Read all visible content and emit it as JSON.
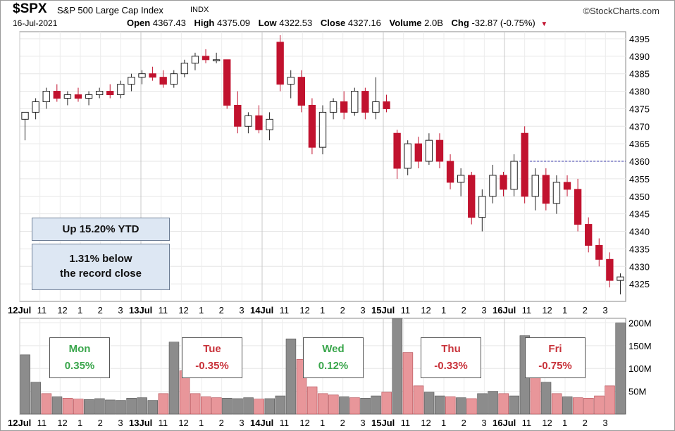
{
  "header": {
    "symbol": "$SPX",
    "name": "S&P 500 Large Cap Index",
    "exchange": "INDX",
    "brand": "©StockCharts.com",
    "date": "16-Jul-2021",
    "open_label": "Open",
    "open": "4367.43",
    "high_label": "High",
    "high": "4375.09",
    "low_label": "Low",
    "low": "4322.53",
    "close_label": "Close",
    "close": "4327.16",
    "volume_label": "Volume",
    "volume": "2.0B",
    "chg_label": "Chg",
    "chg": "-32.87 (-0.75%)"
  },
  "annotations": {
    "ytd": "Up 15.20% YTD",
    "record_line1": "1.31% below",
    "record_line2": "the record close"
  },
  "days": [
    {
      "name": "Mon",
      "pct": "0.35%",
      "dir": "up"
    },
    {
      "name": "Tue",
      "pct": "-0.35%",
      "dir": "down"
    },
    {
      "name": "Wed",
      "pct": "0.12%",
      "dir": "up"
    },
    {
      "name": "Thu",
      "pct": "-0.33%",
      "dir": "down"
    },
    {
      "name": "Fri",
      "pct": "-0.75%",
      "dir": "down"
    }
  ],
  "colors": {
    "up": "#3aa64c",
    "down": "#c1122e",
    "up_candle": "#ffffff",
    "volume_up": "#8c8c8c",
    "volume_down": "#e8969a",
    "reference": "#3a3aa8"
  },
  "chart_data": [
    {
      "type": "candlestick",
      "title": "$SPX S&P 500 Large Cap Index INDX",
      "ylim": [
        4320,
        4397
      ],
      "yticks": [
        4325,
        4330,
        4335,
        4340,
        4345,
        4350,
        4355,
        4360,
        4365,
        4370,
        4375,
        4380,
        4385,
        4390,
        4395
      ],
      "x_tick_labels": [
        "12Jul",
        "11",
        "12",
        "1",
        "2",
        "3",
        "13Jul",
        "11",
        "12",
        "1",
        "2",
        "3",
        "14Jul",
        "11",
        "12",
        "1",
        "2",
        "3",
        "15Jul",
        "11",
        "12",
        "1",
        "2",
        "3",
        "16Jul",
        "11",
        "12",
        "1",
        "2",
        "3"
      ],
      "reference_line": 4360,
      "grid": true,
      "candles": [
        [
          4372,
          4374,
          4366,
          4374
        ],
        [
          4374,
          4378,
          4372,
          4377
        ],
        [
          4377,
          4381,
          4375,
          4380
        ],
        [
          4380,
          4382,
          4377,
          4378
        ],
        [
          4378,
          4380,
          4376,
          4379
        ],
        [
          4379,
          4381,
          4377,
          4378
        ],
        [
          4378,
          4380,
          4376,
          4379
        ],
        [
          4379,
          4381,
          4378,
          4380
        ],
        [
          4380,
          4382,
          4378,
          4379
        ],
        [
          4379,
          4383,
          4378,
          4382
        ],
        [
          4382,
          4385,
          4380,
          4384
        ],
        [
          4384,
          4386,
          4382,
          4385
        ],
        [
          4385,
          4387,
          4383,
          4384
        ],
        [
          4384,
          4386,
          4381,
          4382
        ],
        [
          4382,
          4386,
          4381,
          4385
        ],
        [
          4385,
          4389,
          4384,
          4388
        ],
        [
          4388,
          4391,
          4386,
          4390
        ],
        [
          4390,
          4392,
          4388,
          4389
        ],
        [
          4389,
          4391,
          4388,
          4389
        ],
        [
          4389,
          4389,
          4375,
          4376
        ],
        [
          4376,
          4380,
          4368,
          4370
        ],
        [
          4370,
          4374,
          4368,
          4373
        ],
        [
          4373,
          4376,
          4368,
          4369
        ],
        [
          4369,
          4374,
          4366,
          4372
        ],
        [
          4394,
          4396,
          4380,
          4382
        ],
        [
          4382,
          4386,
          4378,
          4384
        ],
        [
          4384,
          4386,
          4374,
          4376
        ],
        [
          4376,
          4378,
          4362,
          4364
        ],
        [
          4364,
          4376,
          4362,
          4374
        ],
        [
          4374,
          4378,
          4372,
          4377
        ],
        [
          4377,
          4380,
          4372,
          4374
        ],
        [
          4374,
          4381,
          4373,
          4380
        ],
        [
          4380,
          4381,
          4372,
          4374
        ],
        [
          4374,
          4384,
          4372,
          4377
        ],
        [
          4377,
          4379,
          4374,
          4375
        ],
        [
          4368,
          4369,
          4355,
          4358
        ],
        [
          4358,
          4366,
          4356,
          4365
        ],
        [
          4365,
          4367,
          4358,
          4360
        ],
        [
          4360,
          4368,
          4359,
          4366
        ],
        [
          4366,
          4368,
          4358,
          4360
        ],
        [
          4360,
          4362,
          4352,
          4354
        ],
        [
          4354,
          4358,
          4350,
          4356
        ],
        [
          4356,
          4357,
          4342,
          4344
        ],
        [
          4344,
          4352,
          4340,
          4350
        ],
        [
          4350,
          4359,
          4348,
          4356
        ],
        [
          4356,
          4357,
          4350,
          4352
        ],
        [
          4352,
          4362,
          4350,
          4360
        ],
        [
          4368,
          4370,
          4348,
          4350
        ],
        [
          4350,
          4358,
          4346,
          4356
        ],
        [
          4356,
          4358,
          4346,
          4348
        ],
        [
          4348,
          4356,
          4345,
          4354
        ],
        [
          4354,
          4356,
          4350,
          4352
        ],
        [
          4352,
          4355,
          4340,
          4342
        ],
        [
          4342,
          4344,
          4334,
          4336
        ],
        [
          4336,
          4338,
          4330,
          4332
        ],
        [
          4332,
          4334,
          4324,
          4326
        ],
        [
          4326,
          4328,
          4322,
          4327
        ]
      ]
    },
    {
      "type": "bar",
      "title": "Volume",
      "ylim": [
        0,
        210
      ],
      "yticks": [
        50,
        100,
        150,
        200
      ],
      "ytick_labels": [
        "50M",
        "100M",
        "150M",
        "200M"
      ],
      "x_tick_labels": [
        "12Jul",
        "11",
        "12",
        "1",
        "2",
        "3",
        "13Jul",
        "11",
        "12",
        "1",
        "2",
        "3",
        "14Jul",
        "11",
        "12",
        "1",
        "2",
        "3",
        "15Jul",
        "11",
        "12",
        "1",
        "2",
        "3",
        "16Jul",
        "11",
        "12",
        "1",
        "2",
        "3"
      ],
      "values": [
        130,
        70,
        45,
        38,
        35,
        33,
        32,
        34,
        31,
        30,
        35,
        36,
        30,
        45,
        158,
        95,
        45,
        38,
        36,
        35,
        34,
        36,
        33,
        34,
        40,
        165,
        120,
        60,
        45,
        42,
        38,
        36,
        35,
        40,
        48,
        210,
        135,
        62,
        48,
        40,
        38,
        36,
        34,
        45,
        50,
        45,
        40,
        172,
        125,
        70,
        45,
        38,
        36,
        35,
        40,
        62,
        200
      ],
      "volume_dir": [
        "up",
        "up",
        "down",
        "up",
        "down",
        "down",
        "up",
        "up",
        "up",
        "up",
        "up",
        "up",
        "up",
        "down",
        "up",
        "down",
        "down",
        "down",
        "down",
        "up",
        "up",
        "up",
        "down",
        "up",
        "up",
        "up",
        "down",
        "down",
        "down",
        "down",
        "up",
        "down",
        "up",
        "up",
        "down",
        "up",
        "down",
        "down",
        "up",
        "up",
        "down",
        "up",
        "down",
        "up",
        "up",
        "down",
        "up",
        "up",
        "down",
        "up",
        "down",
        "up",
        "down",
        "down",
        "down",
        "down",
        "up"
      ]
    }
  ]
}
